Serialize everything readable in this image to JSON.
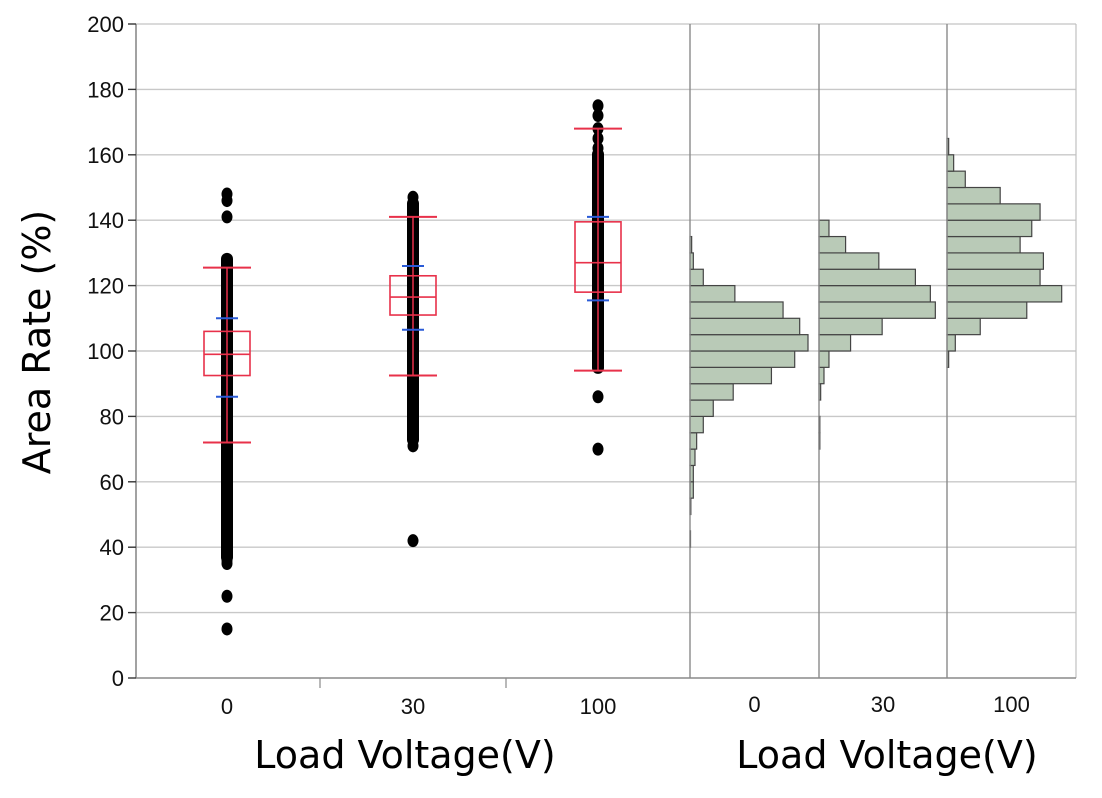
{
  "chart_data": {
    "type": "box+histogram",
    "ylabel": "Area Rate (%)",
    "box_xlabel": "Load Voltage(V)",
    "hist_xlabel": "Load Voltage(V)",
    "ylim": [
      0,
      200
    ],
    "yticks": [
      0,
      20,
      40,
      60,
      80,
      100,
      120,
      140,
      160,
      180,
      200
    ],
    "grid": true,
    "categories": [
      "0",
      "30",
      "100"
    ],
    "box": [
      {
        "category": "0",
        "whisker_low": 72,
        "q1": 92.5,
        "median": 99,
        "q3": 106,
        "whisker_high": 125.5,
        "mean_minus_sd": 86,
        "mean_plus_sd": 110,
        "data_band": [
          35,
          130
        ],
        "outliers": [
          148,
          146,
          141,
          50,
          48,
          44,
          42,
          40,
          38,
          36,
          35,
          25,
          15
        ]
      },
      {
        "category": "30",
        "whisker_low": 92.5,
        "q1": 111,
        "median": 116.5,
        "q3": 123,
        "whisker_high": 141,
        "mean_minus_sd": 106.5,
        "mean_plus_sd": 126,
        "data_band": [
          71,
          147
        ],
        "outliers": [
          147,
          145,
          143,
          90,
          87,
          84,
          81,
          78,
          75,
          73,
          71,
          42
        ]
      },
      {
        "category": "100",
        "whisker_low": 94,
        "q1": 118,
        "median": 127,
        "q3": 139.5,
        "whisker_high": 168,
        "mean_minus_sd": 115.5,
        "mean_plus_sd": 141,
        "data_band": [
          93,
          162
        ],
        "outliers": [
          175,
          172,
          168,
          165,
          162,
          86,
          70
        ]
      }
    ],
    "hist_bin_width": 5,
    "histograms": [
      {
        "category": "0",
        "bins": [
          {
            "y": 40,
            "count": 0.3
          },
          {
            "y": 45,
            "count": 0
          },
          {
            "y": 50,
            "count": 0.5
          },
          {
            "y": 55,
            "count": 2
          },
          {
            "y": 60,
            "count": 2
          },
          {
            "y": 65,
            "count": 3
          },
          {
            "y": 70,
            "count": 4
          },
          {
            "y": 75,
            "count": 8
          },
          {
            "y": 80,
            "count": 14
          },
          {
            "y": 85,
            "count": 26
          },
          {
            "y": 90,
            "count": 49
          },
          {
            "y": 95,
            "count": 63
          },
          {
            "y": 100,
            "count": 71
          },
          {
            "y": 105,
            "count": 66
          },
          {
            "y": 110,
            "count": 56
          },
          {
            "y": 115,
            "count": 27
          },
          {
            "y": 120,
            "count": 8
          },
          {
            "y": 125,
            "count": 2
          },
          {
            "y": 130,
            "count": 1
          }
        ]
      },
      {
        "category": "30",
        "bins": [
          {
            "y": 70,
            "count": 0.5
          },
          {
            "y": 75,
            "count": 0.5
          },
          {
            "y": 80,
            "count": 0
          },
          {
            "y": 85,
            "count": 1
          },
          {
            "y": 90,
            "count": 3
          },
          {
            "y": 95,
            "count": 6
          },
          {
            "y": 100,
            "count": 19
          },
          {
            "y": 105,
            "count": 38
          },
          {
            "y": 110,
            "count": 70
          },
          {
            "y": 115,
            "count": 67
          },
          {
            "y": 120,
            "count": 58
          },
          {
            "y": 125,
            "count": 36
          },
          {
            "y": 130,
            "count": 16
          },
          {
            "y": 135,
            "count": 6
          }
        ]
      },
      {
        "category": "100",
        "bins": [
          {
            "y": 95,
            "count": 1
          },
          {
            "y": 100,
            "count": 5
          },
          {
            "y": 105,
            "count": 20
          },
          {
            "y": 110,
            "count": 48
          },
          {
            "y": 115,
            "count": 69
          },
          {
            "y": 120,
            "count": 56
          },
          {
            "y": 125,
            "count": 58
          },
          {
            "y": 130,
            "count": 44
          },
          {
            "y": 135,
            "count": 51
          },
          {
            "y": 140,
            "count": 56
          },
          {
            "y": 145,
            "count": 32
          },
          {
            "y": 150,
            "count": 11
          },
          {
            "y": 155,
            "count": 4
          },
          {
            "y": 160,
            "count": 1
          }
        ]
      }
    ],
    "colors": {
      "box": "#e8314a",
      "sd": "#2a5bd7",
      "points": "#000000",
      "hist_fill": "#b9cab7",
      "hist_stroke": "#444444",
      "grid": "#c8c8c8",
      "axis": "#8a8a8a"
    }
  }
}
